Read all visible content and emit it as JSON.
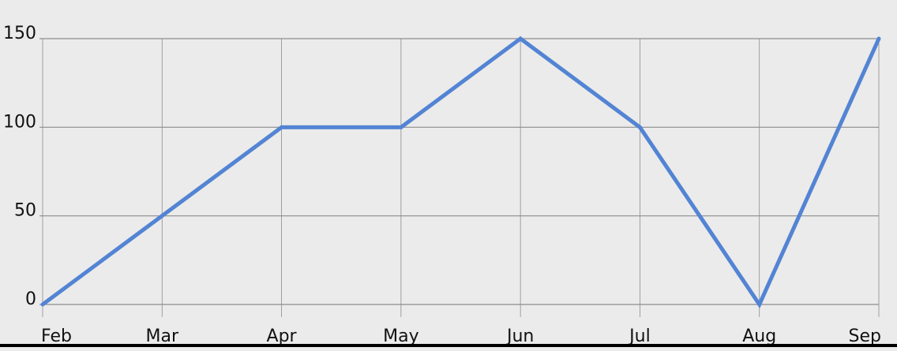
{
  "chart_data": {
    "type": "line",
    "categories": [
      "Feb",
      "Mar",
      "Apr",
      "May",
      "Jun",
      "Jul",
      "Aug",
      "Sep"
    ],
    "series": [
      {
        "values": [
          0,
          50,
          100,
          100,
          150,
          100,
          0,
          150
        ]
      }
    ],
    "ylim": [
      0,
      150
    ],
    "yticks": [
      0,
      50,
      100,
      150
    ],
    "grid": true,
    "legend": "none",
    "title": "",
    "xlabel": "",
    "ylabel": ""
  },
  "colors": {
    "background": "#ebebeb",
    "line": "#5384d4",
    "grid": "#8c8c8c",
    "text": "#111111"
  }
}
